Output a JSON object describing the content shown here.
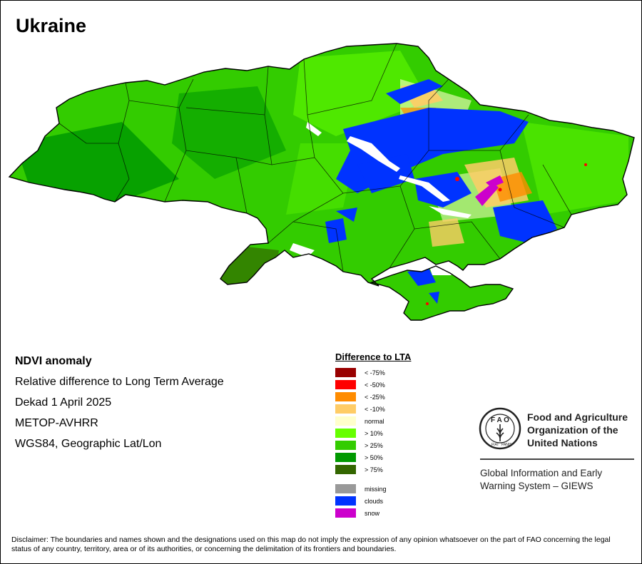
{
  "title": "Ukraine",
  "info": {
    "product": "NDVI anomaly",
    "description": "Relative difference to Long Term Average",
    "period": "Dekad 1 April 2025",
    "sensor": "METOP-AVHRR",
    "projection": "WGS84, Geographic Lat/Lon"
  },
  "legend": {
    "title": "Difference to LTA",
    "classes": [
      {
        "label": "< -75%",
        "color": "#990000"
      },
      {
        "label": "< -50%",
        "color": "#ff0000"
      },
      {
        "label": "< -25%",
        "color": "#ff8c00"
      },
      {
        "label": "< -10%",
        "color": "#ffcc66"
      },
      {
        "label": "normal",
        "color": "#ffffcc"
      },
      {
        "label": "> 10%",
        "color": "#66ff00"
      },
      {
        "label": "> 25%",
        "color": "#33cc00"
      },
      {
        "label": "> 50%",
        "color": "#009900"
      },
      {
        "label": "> 75%",
        "color": "#336600"
      }
    ],
    "special": [
      {
        "label": "missing",
        "color": "#999999"
      },
      {
        "label": "clouds",
        "color": "#0033ff"
      },
      {
        "label": "snow",
        "color": "#cc00cc"
      }
    ]
  },
  "logo": {
    "icon": "fao-emblem-icon",
    "org_line1": "Food and Agriculture",
    "org_line2": "Organization of the",
    "org_line3": "United Nations",
    "system_line1": "Global Information and Early",
    "system_line2": "Warning System – GIEWS"
  },
  "disclaimer": "Disclaimer: The boundaries and names shown and the designations used on this map do not imply the expression of any opinion whatsoever on the part of FAO concerning the legal status of any country, territory, area or of its authorities, or concerning the delimitation of its frontiers and boundaries."
}
